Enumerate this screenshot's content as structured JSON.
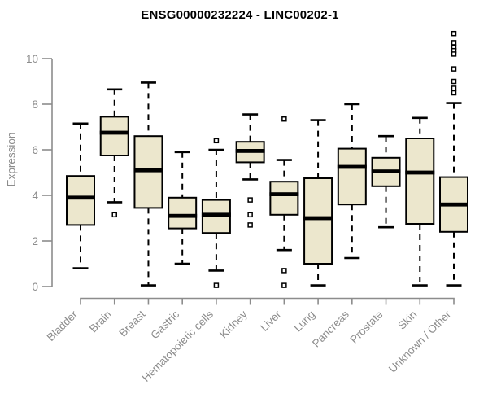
{
  "title": "ENSG00000232224 - LINC00202-1",
  "colors": {
    "background": "#FFFFFF",
    "title_text": "#000000",
    "axis_line": "#8C8C8C",
    "axis_text": "#8C8C8C",
    "box_fill": "#ECE7CD",
    "box_border": "#000000",
    "median_line": "#000000",
    "whisker": "#000000",
    "outlier_border": "#000000",
    "outlier_fill": "#FFFFFF"
  },
  "chart_data": {
    "type": "boxplot",
    "title": "ENSG00000232224 - LINC00202-1",
    "xlabel": "",
    "ylabel": "Expression",
    "ylim": [
      0,
      11.2
    ],
    "yticks": [
      0,
      2,
      4,
      6,
      8,
      10
    ],
    "grid": false,
    "legend": "none",
    "categories": [
      "Bladder",
      "Brain",
      "Breast",
      "Gastric",
      "Hematopoietic cells",
      "Kidney",
      "Liver",
      "Lung",
      "Pancreas",
      "Prostate",
      "Skin",
      "Unknown / Other"
    ],
    "boxes": [
      {
        "category": "Bladder",
        "whisker_low": 0.8,
        "q1": 2.7,
        "median": 3.9,
        "q3": 4.85,
        "whisker_high": 7.15,
        "outliers": []
      },
      {
        "category": "Brain",
        "whisker_low": 3.7,
        "q1": 5.75,
        "median": 6.75,
        "q3": 7.45,
        "whisker_high": 8.65,
        "outliers": [
          3.15
        ]
      },
      {
        "category": "Breast",
        "whisker_low": 0.05,
        "q1": 3.45,
        "median": 5.1,
        "q3": 6.6,
        "whisker_high": 8.95,
        "outliers": []
      },
      {
        "category": "Gastric",
        "whisker_low": 1.0,
        "q1": 2.55,
        "median": 3.1,
        "q3": 3.9,
        "whisker_high": 5.9,
        "outliers": []
      },
      {
        "category": "Hematopoietic cells",
        "whisker_low": 0.7,
        "q1": 2.35,
        "median": 3.15,
        "q3": 3.8,
        "whisker_high": 6.0,
        "outliers": [
          6.4,
          0.05
        ]
      },
      {
        "category": "Kidney",
        "whisker_low": 4.7,
        "q1": 5.45,
        "median": 5.95,
        "q3": 6.35,
        "whisker_high": 7.55,
        "outliers": [
          3.8,
          3.15,
          2.7
        ]
      },
      {
        "category": "Liver",
        "whisker_low": 1.6,
        "q1": 3.15,
        "median": 4.05,
        "q3": 4.6,
        "whisker_high": 5.55,
        "outliers": [
          7.35,
          0.7,
          0.05
        ]
      },
      {
        "category": "Lung",
        "whisker_low": 0.05,
        "q1": 1.0,
        "median": 3.0,
        "q3": 4.75,
        "whisker_high": 7.3,
        "outliers": []
      },
      {
        "category": "Pancreas",
        "whisker_low": 1.25,
        "q1": 3.6,
        "median": 5.25,
        "q3": 6.05,
        "whisker_high": 8.0,
        "outliers": []
      },
      {
        "category": "Prostate",
        "whisker_low": 2.6,
        "q1": 4.4,
        "median": 5.05,
        "q3": 5.65,
        "whisker_high": 6.6,
        "outliers": []
      },
      {
        "category": "Skin",
        "whisker_low": 0.05,
        "q1": 2.75,
        "median": 5.0,
        "q3": 6.5,
        "whisker_high": 7.4,
        "outliers": []
      },
      {
        "category": "Unknown / Other",
        "whisker_low": 0.05,
        "q1": 2.4,
        "median": 3.6,
        "q3": 4.8,
        "whisker_high": 8.05,
        "outliers": [
          11.1,
          10.7,
          10.5,
          10.35,
          10.2,
          9.55,
          9.0,
          8.7,
          8.5
        ]
      }
    ]
  }
}
